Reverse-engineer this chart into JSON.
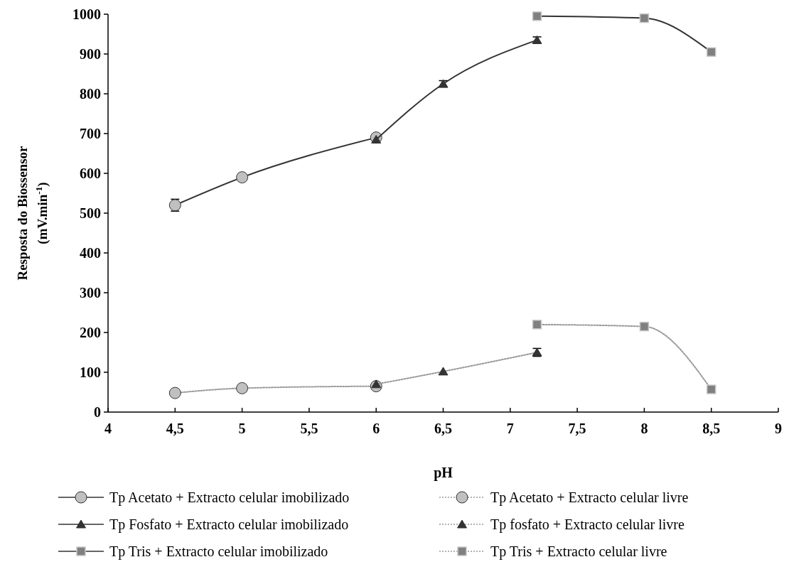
{
  "chart_data": {
    "type": "line",
    "xlabel": "pH",
    "ylabel": "Resposta do Biossensor\n(mV.min$^{-1}$)",
    "xlim": [
      4,
      9
    ],
    "ylim": [
      0,
      1000
    ],
    "xticks": [
      4,
      {
        "value": 4.5,
        "label": "4,5"
      },
      5,
      {
        "value": 5.5,
        "label": "5,5"
      },
      6,
      {
        "value": 6.5,
        "label": "6,5"
      },
      7,
      {
        "value": 7.5,
        "label": "7,5"
      },
      8,
      {
        "value": 8.5,
        "label": "8,5"
      },
      9
    ],
    "yticks": [
      0,
      100,
      200,
      300,
      400,
      500,
      600,
      700,
      800,
      900,
      1000
    ],
    "grid": false,
    "legend": "bottom",
    "series": [
      {
        "name": "Tp Acetato + Extracto celular imobilizado",
        "color": "#c0c0c0",
        "marker": "circle",
        "line_style": "solid",
        "x": [
          4.5,
          5,
          6
        ],
        "values": [
          520,
          590,
          690
        ],
        "errors": [
          15,
          null,
          null
        ]
      },
      {
        "name": "Tp Acetato + Extracto celular livre",
        "color": "#c0c0c0",
        "marker": "circle",
        "line_style": "dotted",
        "x": [
          4.5,
          5,
          6
        ],
        "values": [
          48,
          60,
          65
        ]
      },
      {
        "name": "Tp Fosfato + Extracto celular imobilizado",
        "color": "#333333",
        "marker": "triangle",
        "line_style": "solid",
        "x": [
          6,
          6.5,
          7.2
        ],
        "values": [
          685,
          825,
          935
        ],
        "errors": [
          null,
          8,
          8
        ]
      },
      {
        "name": "Tp fosfato + Extracto celular livre",
        "color": "#333333",
        "marker": "triangle",
        "line_style": "dotted",
        "x": [
          6,
          6.5,
          7.2
        ],
        "values": [
          70,
          102,
          150
        ],
        "errors": [
          null,
          null,
          10
        ]
      },
      {
        "name": "Tp Tris + Extracto celular imobilizado",
        "color": "#808080",
        "marker": "square",
        "line_style": "solid",
        "x": [
          7.2,
          8,
          8.5
        ],
        "values": [
          995,
          990,
          905
        ]
      },
      {
        "name": "Tp Tris + Extracto celular livre",
        "color": "#808080",
        "marker": "square",
        "line_style": "dotted",
        "x": [
          7.2,
          8,
          8.5
        ],
        "values": [
          220,
          215,
          57
        ]
      }
    ]
  }
}
